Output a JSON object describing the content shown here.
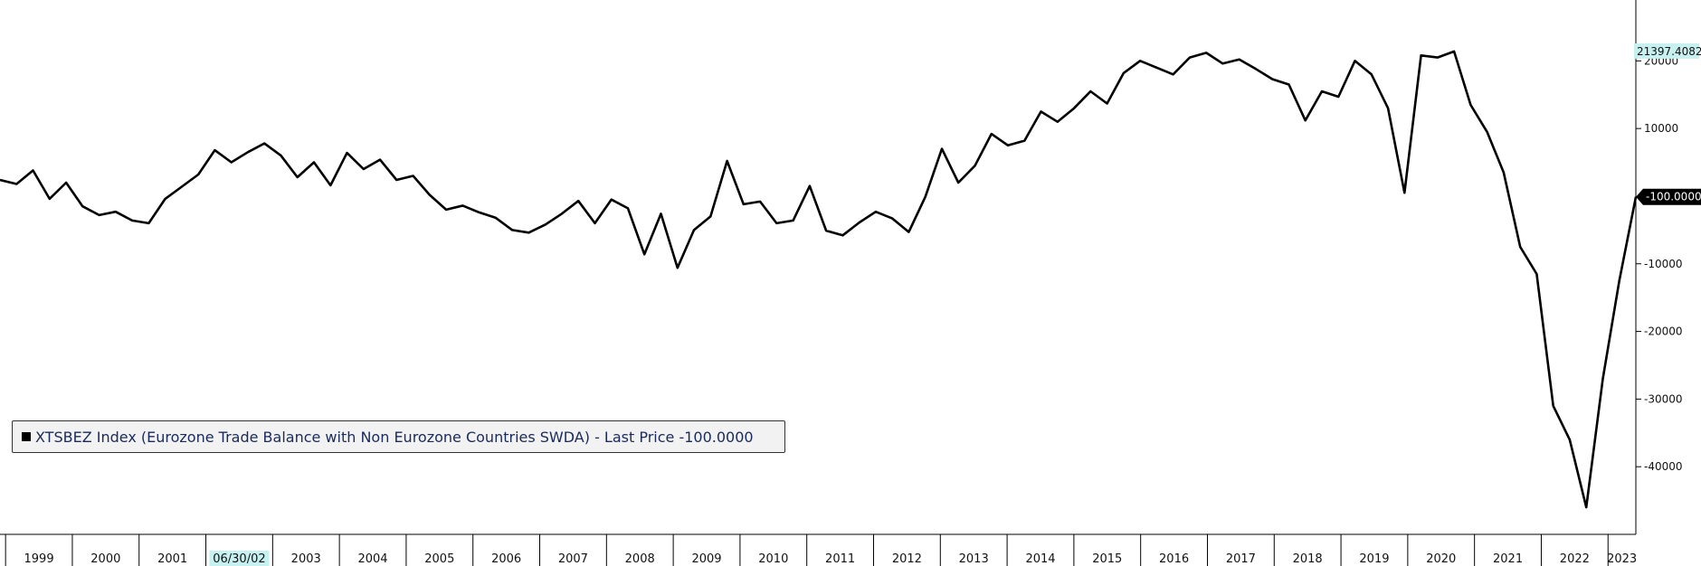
{
  "chart_data": {
    "type": "line",
    "legend": {
      "label": "XTSBEZ Index (Eurozone Trade Balance with Non Eurozone Countries SWDA) - Last Price -100.0000",
      "position": "lower-left"
    },
    "x_start": "1998-12",
    "x_end": "2023-06",
    "x_tick_labels": [
      "1999",
      "2000",
      "2001",
      "06/30/02",
      "2003",
      "2004",
      "2005",
      "2006",
      "2007",
      "2008",
      "2009",
      "2010",
      "2011",
      "2012",
      "2013",
      "2014",
      "2015",
      "2016",
      "2017",
      "2018",
      "2019",
      "2020",
      "2021",
      "2022",
      "2023"
    ],
    "highlighted_x_label": "06/30/02",
    "ylim": [
      -50000,
      29000
    ],
    "y_ticks": [
      20000,
      10000,
      -10000,
      -20000,
      -30000,
      -40000
    ],
    "y_tick_labels": [
      "20000",
      "10000",
      "-10000",
      "-20000",
      "-30000",
      "-40000"
    ],
    "last_value_label": "-100.0000",
    "max_value_label": "21397.4082",
    "colors": {
      "line": "#000000",
      "max_badge": "#c7f0f0",
      "last_badge": "#000000",
      "highlight": "#c7f0f0",
      "legend_text": "#1a2a5a"
    },
    "series": [
      {
        "name": "XTSBEZ Index",
        "quarterly_values": [
          2400,
          1800,
          3800,
          -400,
          2000,
          -1500,
          -2800,
          -2300,
          -3600,
          -4000,
          -400,
          1400,
          3200,
          6800,
          5000,
          6500,
          7800,
          6000,
          2800,
          5000,
          1600,
          6400,
          4000,
          5400,
          2400,
          3000,
          200,
          -2000,
          -1400,
          -2400,
          -3200,
          -5000,
          -5400,
          -4200,
          -2600,
          -700,
          -4000,
          -500,
          -1800,
          -8600,
          -2600,
          -10600,
          -5000,
          -3000,
          5200,
          -1200,
          -800,
          -4000,
          -3600,
          1500,
          -5100,
          -5800,
          -3900,
          -2300,
          -3300,
          -5300,
          -100,
          7000,
          2000,
          4500,
          9200,
          7500,
          8200,
          12500,
          11000,
          13000,
          15500,
          13700,
          18200,
          20000,
          19000,
          18000,
          20500,
          21200,
          19600,
          20200,
          18800,
          17300,
          16500,
          11200,
          15500,
          14700,
          20000,
          18000,
          13000,
          500,
          20800,
          20500,
          21397,
          13500,
          9500,
          3500,
          -7500,
          -11500,
          -31000,
          -36000,
          -46000,
          -27000,
          -12500,
          -100
        ]
      }
    ]
  }
}
